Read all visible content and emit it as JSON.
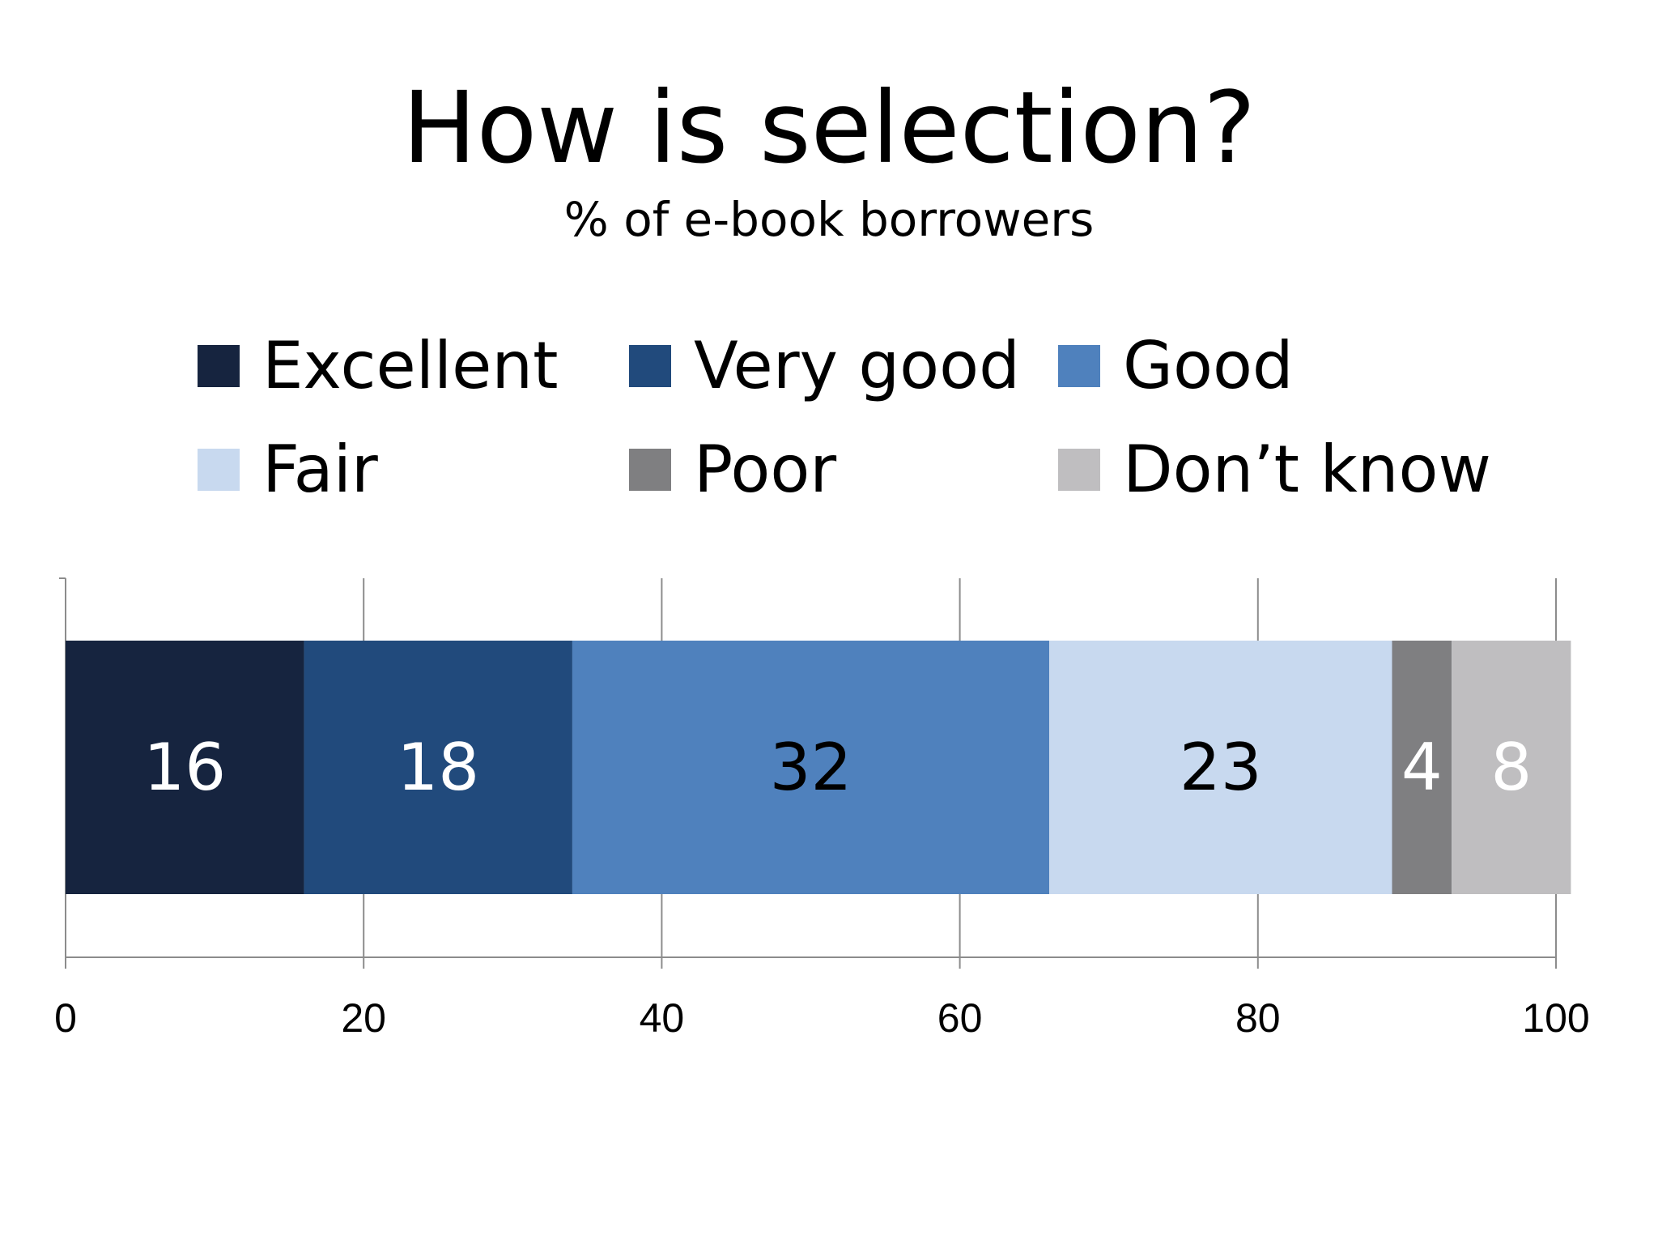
{
  "chart_data": {
    "type": "bar",
    "orientation": "horizontal",
    "stacked": true,
    "title": "How is selection?",
    "subtitle": "% of e-book borrowers",
    "categories": [
      ""
    ],
    "series": [
      {
        "name": "Excellent",
        "values": [
          16
        ],
        "color": "#16243f",
        "label_color": "#ffffff"
      },
      {
        "name": "Very good",
        "values": [
          18
        ],
        "color": "#214a7c",
        "label_color": "#ffffff"
      },
      {
        "name": "Good",
        "values": [
          32
        ],
        "color": "#4f81bd",
        "label_color": "#000000"
      },
      {
        "name": "Fair",
        "values": [
          23
        ],
        "color": "#c8d9ef",
        "label_color": "#000000"
      },
      {
        "name": "Poor",
        "values": [
          4
        ],
        "color": "#7f7f81",
        "label_color": "#ffffff"
      },
      {
        "name": "Don’t know",
        "values": [
          8
        ],
        "color": "#bfbec0",
        "label_color": "#ffffff"
      }
    ],
    "xlim": [
      0,
      100
    ],
    "xticks": [
      0,
      20,
      40,
      60,
      80,
      100
    ],
    "xtick_labels": [
      "0",
      "20",
      "40",
      "60",
      "80",
      "100"
    ],
    "grid": true,
    "legend_position": "top",
    "legend_columns": 3
  }
}
